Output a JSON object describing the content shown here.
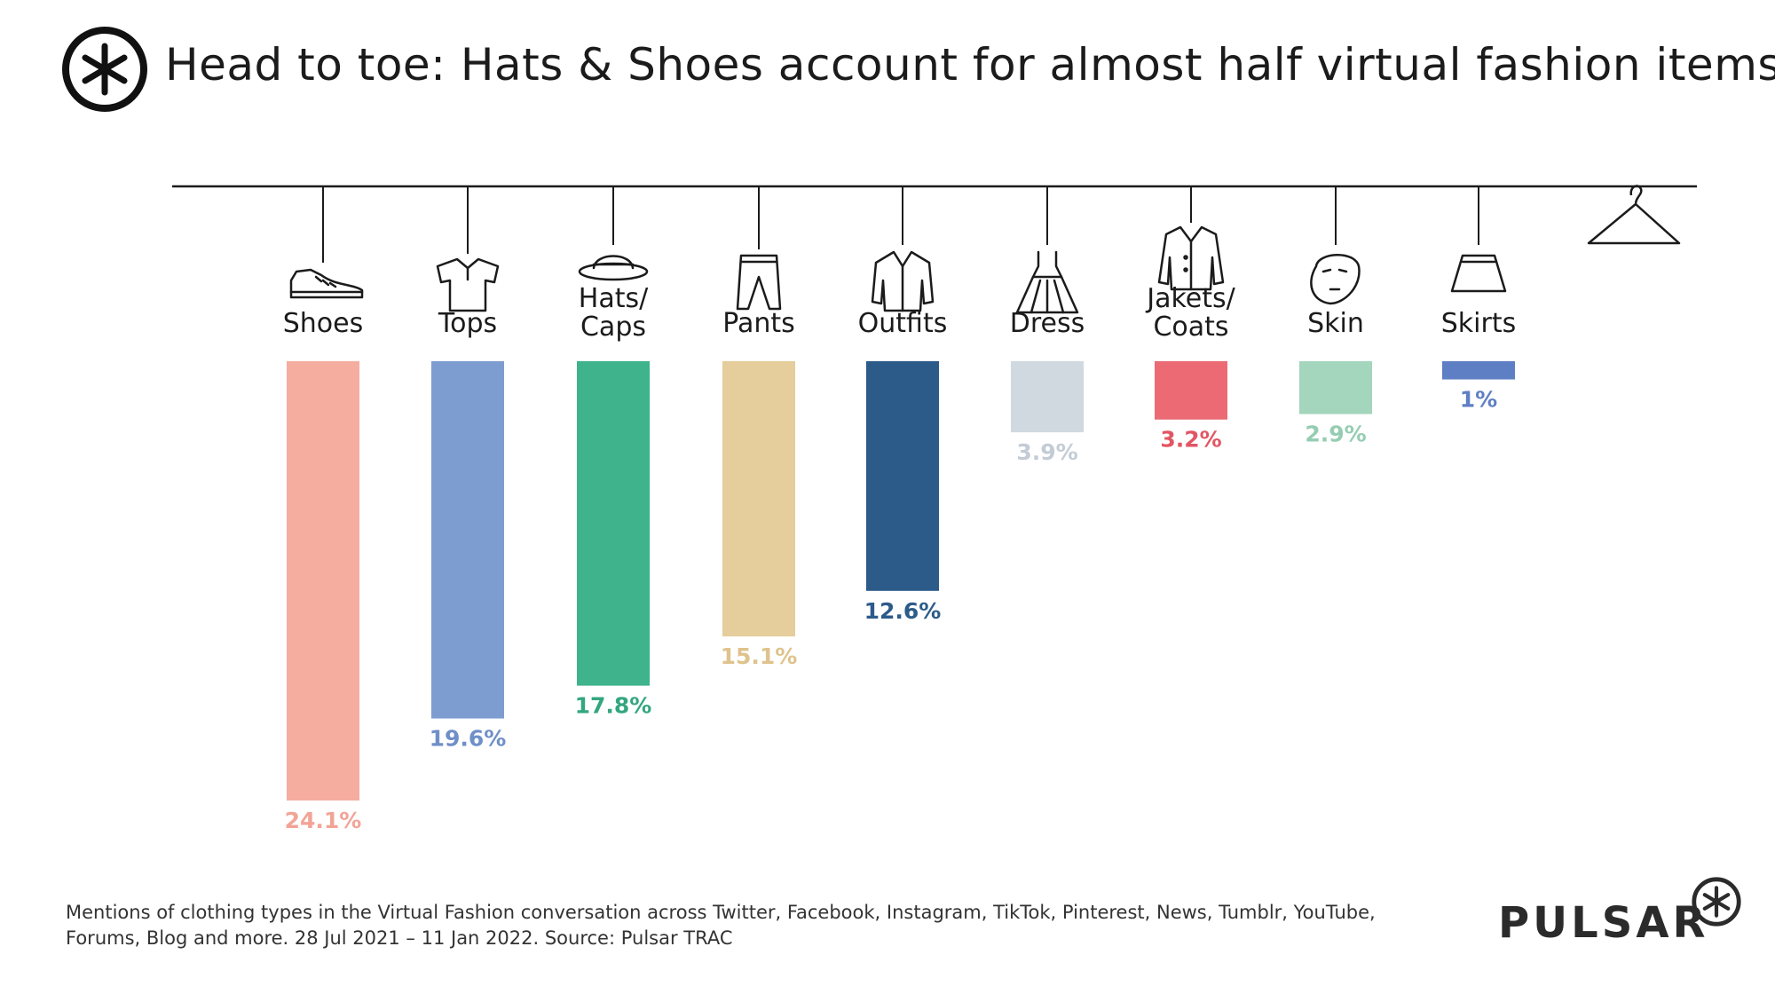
{
  "title": "Head to toe: Hats & Shoes account for almost half virtual fashion items",
  "footnote_line1": "Mentions of clothing types in the Virtual Fashion conversation across Twitter, Facebook, Instagram, TikTok, Pinterest, News, Tumblr, YouTube,",
  "footnote_line2": "Forums, Blog and more. 28 Jul 2021  – 11 Jan 2022. Source: Pulsar TRAC",
  "brand": "PULSAR",
  "icons": [
    "sneaker-icon",
    "tshirt-icon",
    "hat-icon",
    "pants-icon",
    "outfit-icon",
    "dress-icon",
    "coat-icon",
    "face-mask-icon",
    "skirt-icon",
    "hanger-icon"
  ],
  "chart_data": {
    "type": "bar",
    "orientation": "hanging-down",
    "categories": [
      [
        "Shoes"
      ],
      [
        "Tops"
      ],
      [
        "Hats/",
        "Caps"
      ],
      [
        "Pants"
      ],
      [
        "Outfits"
      ],
      [
        "Dress"
      ],
      [
        "Jakets/",
        "Coats"
      ],
      [
        "Skin"
      ],
      [
        "Skirts"
      ]
    ],
    "values": [
      24.1,
      19.6,
      17.8,
      15.1,
      12.6,
      3.9,
      3.2,
      2.9,
      1
    ],
    "labels": [
      "24.1%",
      "19.6%",
      "17.8%",
      "15.1%",
      "12.6%",
      "3.9%",
      "3.2%",
      "2.9%",
      "1%"
    ],
    "colors": [
      "#f5ada0",
      "#7d9dd1",
      "#3fb38b",
      "#e5cd9c",
      "#2c5b8a",
      "#d0d8e0",
      "#eb6a74",
      "#a4d5bd",
      "#5f7fc4"
    ],
    "label_colors": [
      "#f2a497",
      "#6f8fc8",
      "#33a67f",
      "#dfc38d",
      "#2c5b8a",
      "#c3ccd6",
      "#e35563",
      "#96cdb2",
      "#5f7fc4"
    ],
    "ylim": [
      0,
      24.1
    ]
  }
}
